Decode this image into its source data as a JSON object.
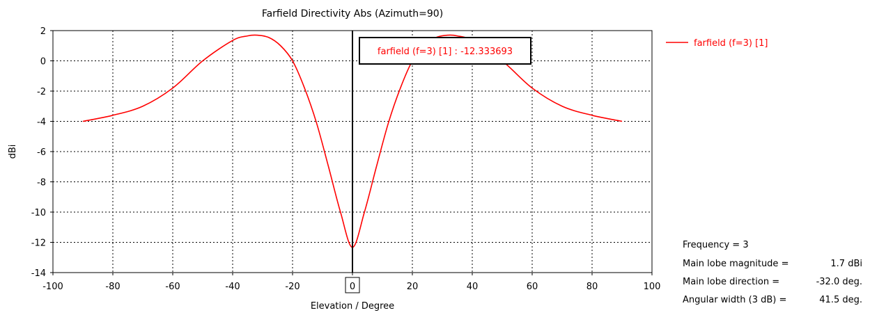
{
  "chart_data": {
    "type": "line",
    "title": "Farfield Directivity Abs (Azimuth=90)",
    "xlabel": "Elevation / Degree",
    "ylabel": "dBi",
    "xlim": [
      -100,
      100
    ],
    "ylim": [
      -14,
      2
    ],
    "x_ticks": [
      "-100",
      "-80",
      "-60",
      "-40",
      "-20",
      "0",
      "20",
      "40",
      "60",
      "80",
      "100"
    ],
    "y_ticks": [
      "2",
      "0",
      "-2",
      "-4",
      "-6",
      "-8",
      "-10",
      "-12",
      "-14"
    ],
    "grid": true,
    "legend_position": "top-right, outside plot",
    "series": [
      {
        "name": "farfield (f=3) [1]",
        "color": "#ff0000",
        "x": [
          -90,
          -80,
          -70,
          -60,
          -50,
          -40,
          -35,
          -32,
          -28,
          -24,
          -20,
          -16,
          -12,
          -8,
          -4,
          0,
          4,
          8,
          12,
          16,
          20,
          24,
          28,
          32,
          35,
          40,
          50,
          60,
          70,
          80,
          90
        ],
        "y": [
          -4.0,
          -3.6,
          -3.0,
          -1.8,
          0.0,
          1.35,
          1.65,
          1.7,
          1.55,
          1.0,
          0.0,
          -1.8,
          -4.1,
          -7.0,
          -10.0,
          -12.33,
          -10.0,
          -7.0,
          -4.1,
          -1.8,
          0.0,
          1.0,
          1.55,
          1.7,
          1.65,
          1.35,
          0.0,
          -1.8,
          -3.0,
          -3.6,
          -4.0
        ]
      }
    ],
    "marker": {
      "x": 0,
      "x_label": "0",
      "label": "farfield (f=3) [1] : -12.333693"
    }
  },
  "info": {
    "frequency": {
      "label": "Frequency = 3"
    },
    "main_lobe_magnitude": {
      "label": "Main lobe magnitude =",
      "value": "1.7 dBi"
    },
    "main_lobe_direction": {
      "label": "Main lobe direction =",
      "value": "-32.0 deg."
    },
    "angular_width": {
      "label": "Angular width (3 dB) =",
      "value": "41.5 deg."
    }
  },
  "colors": {
    "series": "#ff0000",
    "axis": "#000000",
    "grid": "#000000"
  }
}
